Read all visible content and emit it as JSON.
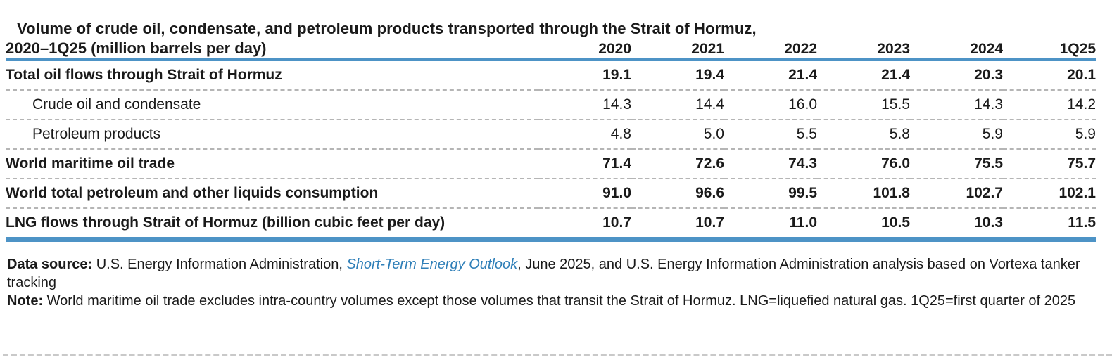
{
  "title": {
    "line1": "Volume of crude oil, condensate, and petroleum products transported through the Strait of Hormuz,",
    "line2": "2020–1Q25 (million barrels per day)"
  },
  "table": {
    "columns": [
      "2020",
      "2021",
      "2022",
      "2023",
      "2024",
      "1Q25"
    ],
    "rows": [
      {
        "label": "Total oil flows through Strait of Hormuz",
        "bold": true,
        "indent": false,
        "values": [
          "19.1",
          "19.4",
          "21.4",
          "21.4",
          "20.3",
          "20.1"
        ]
      },
      {
        "label": "Crude oil and condensate",
        "bold": false,
        "indent": true,
        "values": [
          "14.3",
          "14.4",
          "16.0",
          "15.5",
          "14.3",
          "14.2"
        ]
      },
      {
        "label": "Petroleum products",
        "bold": false,
        "indent": true,
        "values": [
          "4.8",
          "5.0",
          "5.5",
          "5.8",
          "5.9",
          "5.9"
        ]
      },
      {
        "label": "World maritime oil trade",
        "bold": true,
        "indent": false,
        "values": [
          "71.4",
          "72.6",
          "74.3",
          "76.0",
          "75.5",
          "75.7"
        ]
      },
      {
        "label": "World total petroleum and other liquids consumption",
        "bold": true,
        "indent": false,
        "values": [
          "91.0",
          "96.6",
          "99.5",
          "101.8",
          "102.7",
          "102.1"
        ]
      },
      {
        "label": "LNG flows through Strait of Hormuz (billion cubic feet per day)",
        "bold": true,
        "indent": false,
        "values": [
          "10.7",
          "10.7",
          "11.0",
          "10.5",
          "10.3",
          "11.5"
        ]
      }
    ]
  },
  "footer": {
    "data_source_label": "Data source:",
    "data_source_pre_link": " U.S. Energy Information Administration, ",
    "link_text": "Short-Term Energy Outlook",
    "data_source_post_link": ", June 2025, and U.S. Energy Information Administration analysis based on Vortexa tanker tracking",
    "note_label": "Note:",
    "note_text": " World maritime oil trade excludes intra-country volumes except those volumes that transit the Strait of Hormuz. LNG=liquefied natural gas. 1Q25=first quarter of 2025"
  },
  "colors": {
    "accent_blue": "#4d93c6",
    "link_blue": "#2f7fb8",
    "row_dash_gray": "#b5b5b5",
    "page_dash_gray": "#c9c9c9"
  },
  "chart_data": {
    "type": "table",
    "title": "Volume of crude oil, condensate, and petroleum products transported through the Strait of Hormuz, 2020–1Q25 (million barrels per day)",
    "columns": [
      "2020",
      "2021",
      "2022",
      "2023",
      "2024",
      "1Q25"
    ],
    "rows": [
      {
        "label": "Total oil flows through Strait of Hormuz",
        "values": [
          19.1,
          19.4,
          21.4,
          21.4,
          20.3,
          20.1
        ],
        "unit": "million barrels per day"
      },
      {
        "label": "Crude oil and condensate",
        "values": [
          14.3,
          14.4,
          16.0,
          15.5,
          14.3,
          14.2
        ],
        "unit": "million barrels per day"
      },
      {
        "label": "Petroleum products",
        "values": [
          4.8,
          5.0,
          5.5,
          5.8,
          5.9,
          5.9
        ],
        "unit": "million barrels per day"
      },
      {
        "label": "World maritime oil trade",
        "values": [
          71.4,
          72.6,
          74.3,
          76.0,
          75.5,
          75.7
        ],
        "unit": "million barrels per day"
      },
      {
        "label": "World total petroleum and other liquids consumption",
        "values": [
          91.0,
          96.6,
          99.5,
          101.8,
          102.7,
          102.1
        ],
        "unit": "million barrels per day"
      },
      {
        "label": "LNG flows through Strait of Hormuz (billion cubic feet per day)",
        "values": [
          10.7,
          10.7,
          11.0,
          10.5,
          10.3,
          11.5
        ],
        "unit": "billion cubic feet per day"
      }
    ]
  }
}
